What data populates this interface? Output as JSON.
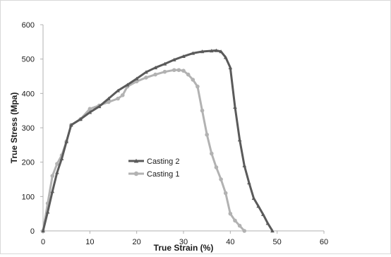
{
  "chart_data": {
    "type": "scatter",
    "xlabel": "True Strain (%)",
    "ylabel": "True Stress (Mpa)",
    "xlim": [
      0,
      60
    ],
    "ylim": [
      0,
      600
    ],
    "x_ticks": [
      0,
      10,
      20,
      30,
      40,
      50,
      60
    ],
    "y_ticks": [
      0,
      100,
      200,
      300,
      400,
      500,
      600
    ],
    "grid": false,
    "legend_position": "left-center",
    "series": [
      {
        "name": "Casting 2",
        "color": "#5a5a5a",
        "marker": "triangle",
        "x": [
          0,
          1,
          2,
          3,
          4,
          5,
          6,
          8,
          10,
          12,
          14,
          16,
          18,
          20,
          22,
          24,
          26,
          28,
          30,
          32,
          34,
          36,
          37,
          38,
          39,
          40,
          41,
          42,
          43,
          44,
          45,
          46,
          47,
          48,
          49
        ],
        "y": [
          0,
          55,
          115,
          170,
          210,
          260,
          308,
          325,
          345,
          362,
          385,
          408,
          425,
          443,
          462,
          475,
          486,
          498,
          508,
          517,
          522,
          524,
          525,
          522,
          505,
          475,
          360,
          265,
          190,
          140,
          95,
          72,
          48,
          22,
          0
        ]
      },
      {
        "name": "Casting 1",
        "color": "#b2b2b2",
        "marker": "circle",
        "x": [
          0,
          1,
          2,
          3,
          4,
          5,
          6,
          8,
          10,
          12,
          14,
          16,
          17,
          18,
          20,
          22,
          24,
          26,
          28,
          29,
          30,
          31,
          32,
          33,
          34,
          35,
          36,
          37,
          38,
          39,
          40,
          41,
          42,
          43
        ],
        "y": [
          0,
          80,
          160,
          195,
          220,
          260,
          308,
          325,
          355,
          365,
          375,
          385,
          395,
          420,
          435,
          446,
          455,
          463,
          468,
          468,
          466,
          455,
          440,
          420,
          350,
          280,
          225,
          185,
          150,
          110,
          50,
          30,
          15,
          0
        ]
      }
    ]
  }
}
